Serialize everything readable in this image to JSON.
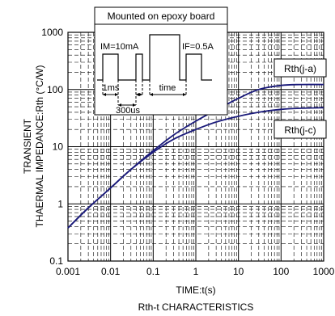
{
  "chart_data": {
    "type": "line",
    "title": "Rth-t CHARACTERISTICS",
    "xlabel": "TIME:t(s)",
    "ylabel_line1": "TRANSIENT",
    "ylabel_line2": "THAERMAL IMPEDANCE:Rth (°C/W)",
    "x_scale": "log",
    "y_scale": "log",
    "xlim": [
      0.001,
      1000
    ],
    "ylim": [
      0.1,
      1000
    ],
    "x_ticks": [
      "0.001",
      "0.01",
      "0.1",
      "1",
      "10",
      "100",
      "1000"
    ],
    "y_ticks": [
      "0.1",
      "1",
      "10",
      "100",
      "1000"
    ],
    "grid": true,
    "series": [
      {
        "name": "Rth(j-a)",
        "color": "#1a1a7a",
        "x": [
          0.001,
          0.003,
          0.01,
          0.03,
          0.1,
          0.3,
          1,
          3,
          10,
          30,
          100,
          300,
          1000
        ],
        "y": [
          0.38,
          0.85,
          1.9,
          4.0,
          8.5,
          16,
          28,
          44,
          70,
          100,
          118,
          122,
          122
        ]
      },
      {
        "name": "Rth(j-c)",
        "color": "#1a1a7a",
        "x": [
          0.001,
          0.003,
          0.01,
          0.03,
          0.1,
          0.3,
          1,
          3,
          10,
          30,
          100,
          300,
          1000
        ],
        "y": [
          0.38,
          0.85,
          1.9,
          4.0,
          8.0,
          13.5,
          20,
          27,
          34,
          40,
          45,
          47,
          48
        ]
      }
    ],
    "annotations": {
      "board": "Mounted on epoxy board",
      "im": "IM=10mA",
      "if": "IF=0.5A",
      "t1": "1ms",
      "t2": "time",
      "t3": "300us"
    }
  }
}
